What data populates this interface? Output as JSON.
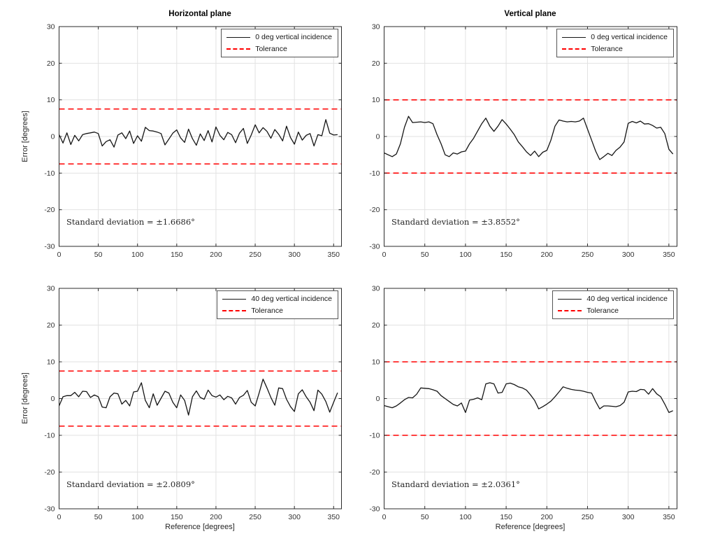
{
  "figure": {
    "background": "#ffffff"
  },
  "colors": {
    "series": "#151515",
    "tolerance": "#ff0000",
    "grid": "#e2e2e2",
    "axis": "#2b2b2b",
    "tick_label": "#333333"
  },
  "axes": {
    "xlabel": "Reference [degrees]",
    "ylabel": "Error [degrees]",
    "xlim": [
      0,
      360
    ],
    "ylim": [
      -30,
      30
    ],
    "xticks": [
      0,
      50,
      100,
      150,
      200,
      250,
      300,
      350
    ],
    "yticks": [
      -30,
      -20,
      -10,
      0,
      10,
      20,
      30
    ],
    "grid": true
  },
  "chart_data": [
    {
      "type": "line",
      "title": "Horizontal plane",
      "position": "top-left",
      "legend": [
        {
          "label": "0 deg vertical incidence",
          "style": "solid-black"
        },
        {
          "label": "Tolerance",
          "style": "dashed-red"
        }
      ],
      "tolerance": 7.5,
      "std_text": "Standard deviation = ±1.6686°",
      "x_start": 0,
      "x_step": 5,
      "x_end": 355,
      "y": [
        0.5,
        -1.8,
        1.0,
        -2.2,
        0.3,
        -1.2,
        0.5,
        0.8,
        1.0,
        1.2,
        0.8,
        -2.6,
        -1.4,
        -0.9,
        -2.9,
        0.4,
        1.0,
        -0.6,
        1.5,
        -1.9,
        0.2,
        -1.3,
        2.5,
        1.6,
        1.5,
        1.2,
        0.8,
        -2.3,
        -0.7,
        0.9,
        1.8,
        -0.4,
        -1.6,
        2.0,
        -0.6,
        -2.4,
        0.7,
        -1.1,
        1.6,
        -1.5,
        2.6,
        0.3,
        -0.9,
        1.1,
        0.5,
        -1.7,
        0.9,
        2.2,
        -1.9,
        0.4,
        3.2,
        1.0,
        2.4,
        1.4,
        -0.5,
        1.9,
        0.6,
        -1.2,
        2.8,
        -0.3,
        -2.1,
        1.2,
        -1.0,
        0.3,
        0.8,
        -2.6,
        0.5,
        0.2,
        4.6,
        0.9,
        0.4,
        0.5
      ]
    },
    {
      "type": "line",
      "title": "Vertical plane",
      "position": "top-right",
      "legend": [
        {
          "label": "0 deg vertical incidence",
          "style": "solid-black"
        },
        {
          "label": "Tolerance",
          "style": "dashed-red"
        }
      ],
      "tolerance": 10,
      "std_text": "Standard deviation = ±3.8552°",
      "x_start": 0,
      "x_step": 5,
      "x_end": 355,
      "y": [
        -4.5,
        -5.0,
        -5.5,
        -4.8,
        -2.0,
        2.5,
        5.5,
        3.8,
        3.9,
        4.0,
        3.8,
        4.0,
        3.5,
        0.5,
        -2.0,
        -5.0,
        -5.5,
        -4.5,
        -4.8,
        -4.2,
        -4.0,
        -2.0,
        -0.5,
        1.5,
        3.5,
        5.0,
        2.8,
        1.4,
        2.8,
        4.6,
        3.4,
        2.0,
        0.5,
        -1.5,
        -2.8,
        -4.2,
        -5.2,
        -4.0,
        -5.5,
        -4.3,
        -3.8,
        -1.0,
        2.8,
        4.5,
        4.2,
        4.0,
        4.1,
        4.0,
        4.2,
        5.0,
        2.0,
        -1.0,
        -4.0,
        -6.3,
        -5.5,
        -4.6,
        -5.2,
        -3.8,
        -2.9,
        -1.5,
        3.6,
        4.1,
        3.7,
        4.2,
        3.4,
        3.5,
        3.0,
        2.3,
        2.5,
        0.8,
        -3.5,
        -4.8
      ]
    },
    {
      "type": "line",
      "title": "",
      "position": "bottom-left",
      "legend": [
        {
          "label": "40 deg vertical incidence",
          "style": "solid-black"
        },
        {
          "label": "Tolerance",
          "style": "dashed-red"
        }
      ],
      "tolerance": 7.5,
      "std_text": "Standard deviation = ±2.0809°",
      "x_start": 0,
      "x_step": 5,
      "x_end": 355,
      "y": [
        -2.0,
        0.5,
        0.8,
        0.8,
        1.7,
        0.5,
        2.0,
        1.9,
        0.3,
        1.0,
        0.5,
        -2.3,
        -2.5,
        0.5,
        1.5,
        1.3,
        -1.5,
        -0.5,
        -2.0,
        1.8,
        2.0,
        4.3,
        -0.5,
        -2.5,
        1.3,
        -1.8,
        0.1,
        2.0,
        1.5,
        -1.0,
        -2.5,
        1.0,
        -0.5,
        -4.5,
        0.5,
        2.1,
        0.3,
        -0.2,
        2.3,
        0.8,
        0.4,
        1.0,
        -0.3,
        0.6,
        0.2,
        -1.5,
        0.3,
        0.9,
        2.2,
        -1.0,
        -2.0,
        1.5,
        5.3,
        2.9,
        0.3,
        -1.8,
        2.9,
        2.7,
        -0.2,
        -2.2,
        -3.5,
        1.3,
        2.4,
        0.5,
        -1.0,
        -3.3,
        2.3,
        1.2,
        -0.8,
        -3.7,
        -1.0,
        1.6
      ]
    },
    {
      "type": "line",
      "title": "",
      "position": "bottom-right",
      "legend": [
        {
          "label": "40 deg vertical incidence",
          "style": "solid-black"
        },
        {
          "label": "Tolerance",
          "style": "dashed-red"
        }
      ],
      "tolerance": 10,
      "std_text": "Standard deviation = ±2.0361°",
      "x_start": 0,
      "x_step": 5,
      "x_end": 355,
      "y": [
        -1.9,
        -2.2,
        -2.5,
        -2.0,
        -1.2,
        -0.3,
        0.3,
        0.2,
        1.2,
        2.9,
        2.8,
        2.7,
        2.4,
        2.0,
        0.8,
        0.0,
        -0.8,
        -1.6,
        -2.0,
        -1.2,
        -3.8,
        -0.4,
        -0.2,
        0.2,
        -0.3,
        4.0,
        4.3,
        4.0,
        1.5,
        1.7,
        4.0,
        4.2,
        3.8,
        3.2,
        2.9,
        2.3,
        1.0,
        -0.5,
        -2.8,
        -2.2,
        -1.5,
        -0.7,
        0.5,
        1.8,
        3.2,
        2.8,
        2.5,
        2.3,
        2.2,
        2.0,
        1.7,
        1.5,
        -0.8,
        -2.8,
        -2.0,
        -2.0,
        -2.1,
        -2.2,
        -1.9,
        -1.0,
        1.8,
        2.0,
        1.9,
        2.5,
        2.4,
        1.2,
        2.7,
        1.3,
        0.5,
        -1.5,
        -3.8,
        -3.3
      ]
    }
  ]
}
